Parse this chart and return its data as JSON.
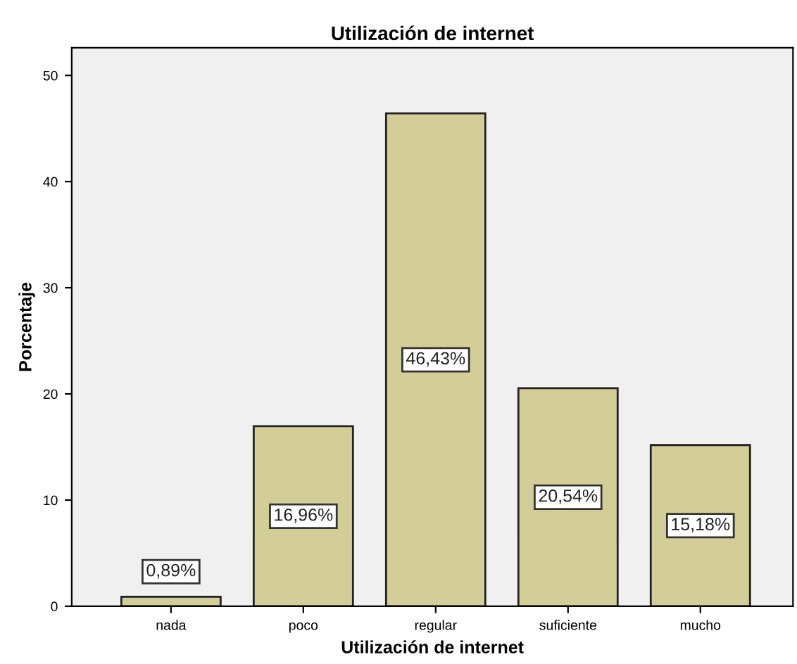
{
  "chart_data": {
    "type": "bar",
    "title": "Utilización de internet",
    "xlabel": "Utilización de internet",
    "ylabel": "Porcentaje",
    "categories": [
      "nada",
      "poco",
      "regular",
      "suficiente",
      "mucho"
    ],
    "values": [
      0.89,
      16.96,
      46.43,
      20.54,
      15.18
    ],
    "value_labels": [
      "0,89%",
      "16,96%",
      "46,43%",
      "20,54%",
      "15,18%"
    ],
    "color": "#d3ce97",
    "ylim": [
      0,
      52.6
    ],
    "yticks": [
      0,
      10,
      20,
      30,
      40,
      50
    ],
    "grid": false
  }
}
